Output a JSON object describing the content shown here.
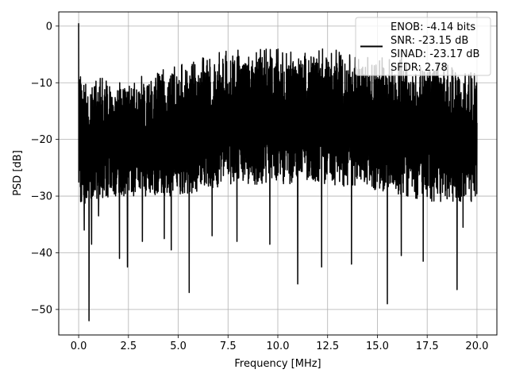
{
  "chart_data": {
    "type": "line",
    "title": "",
    "xlabel": "Frequency [MHz]",
    "ylabel": "PSD [dB]",
    "xlim": [
      -1.0,
      21.0
    ],
    "ylim": [
      -54.5,
      2.5
    ],
    "x_ticks": [
      0.0,
      2.5,
      5.0,
      7.5,
      10.0,
      12.5,
      15.0,
      17.5,
      20.0
    ],
    "x_tick_labels": [
      "0.0",
      "2.5",
      "5.0",
      "7.5",
      "10.0",
      "12.5",
      "15.0",
      "17.5",
      "20.0"
    ],
    "y_ticks": [
      0,
      -10,
      -20,
      -30,
      -40,
      -50
    ],
    "y_tick_labels": [
      "0",
      "−10",
      "−20",
      "−30",
      "−40",
      "−50"
    ],
    "grid": true,
    "legend_position": "top-right",
    "legend_lines": [
      "ENOB: -4.14 bits",
      "SNR: -23.15 dB",
      "SINAD: -23.17 dB",
      "SFDR: 2.78"
    ],
    "line_color": "#000000",
    "series": [
      {
        "x_start": 0.0,
        "x_end": 20.0,
        "envelope_x": [
          0.0,
          0.5,
          2.5,
          5.0,
          7.5,
          10.0,
          12.5,
          15.0,
          17.5,
          20.0
        ],
        "envelope_top": [
          -8,
          -11,
          -11,
          -9,
          -6,
          -6,
          -6,
          -7,
          -8,
          -10
        ],
        "envelope_bottom": [
          -32,
          -31,
          -30,
          -30,
          -28,
          -28,
          -28,
          -29,
          -31,
          -31
        ],
        "peaks": [
          {
            "x": 0.0,
            "y": 0.5
          },
          {
            "x": 0.05,
            "y": -9.5
          }
        ],
        "dips": [
          {
            "x": 0.28,
            "y": -36.0
          },
          {
            "x": 0.52,
            "y": -52.0
          },
          {
            "x": 0.65,
            "y": -38.5
          },
          {
            "x": 1.0,
            "y": -33.5
          },
          {
            "x": 2.05,
            "y": -41.0
          },
          {
            "x": 2.45,
            "y": -42.5
          },
          {
            "x": 3.2,
            "y": -38.0
          },
          {
            "x": 4.3,
            "y": -37.5
          },
          {
            "x": 4.65,
            "y": -39.5
          },
          {
            "x": 5.55,
            "y": -47.0
          },
          {
            "x": 6.7,
            "y": -37.0
          },
          {
            "x": 7.95,
            "y": -38.0
          },
          {
            "x": 9.6,
            "y": -38.5
          },
          {
            "x": 11.0,
            "y": -45.5
          },
          {
            "x": 12.2,
            "y": -42.5
          },
          {
            "x": 13.7,
            "y": -42.0
          },
          {
            "x": 15.5,
            "y": -49.0
          },
          {
            "x": 16.2,
            "y": -40.5
          },
          {
            "x": 17.3,
            "y": -41.5
          },
          {
            "x": 19.0,
            "y": -46.5
          },
          {
            "x": 19.3,
            "y": -35.5
          }
        ]
      }
    ]
  }
}
